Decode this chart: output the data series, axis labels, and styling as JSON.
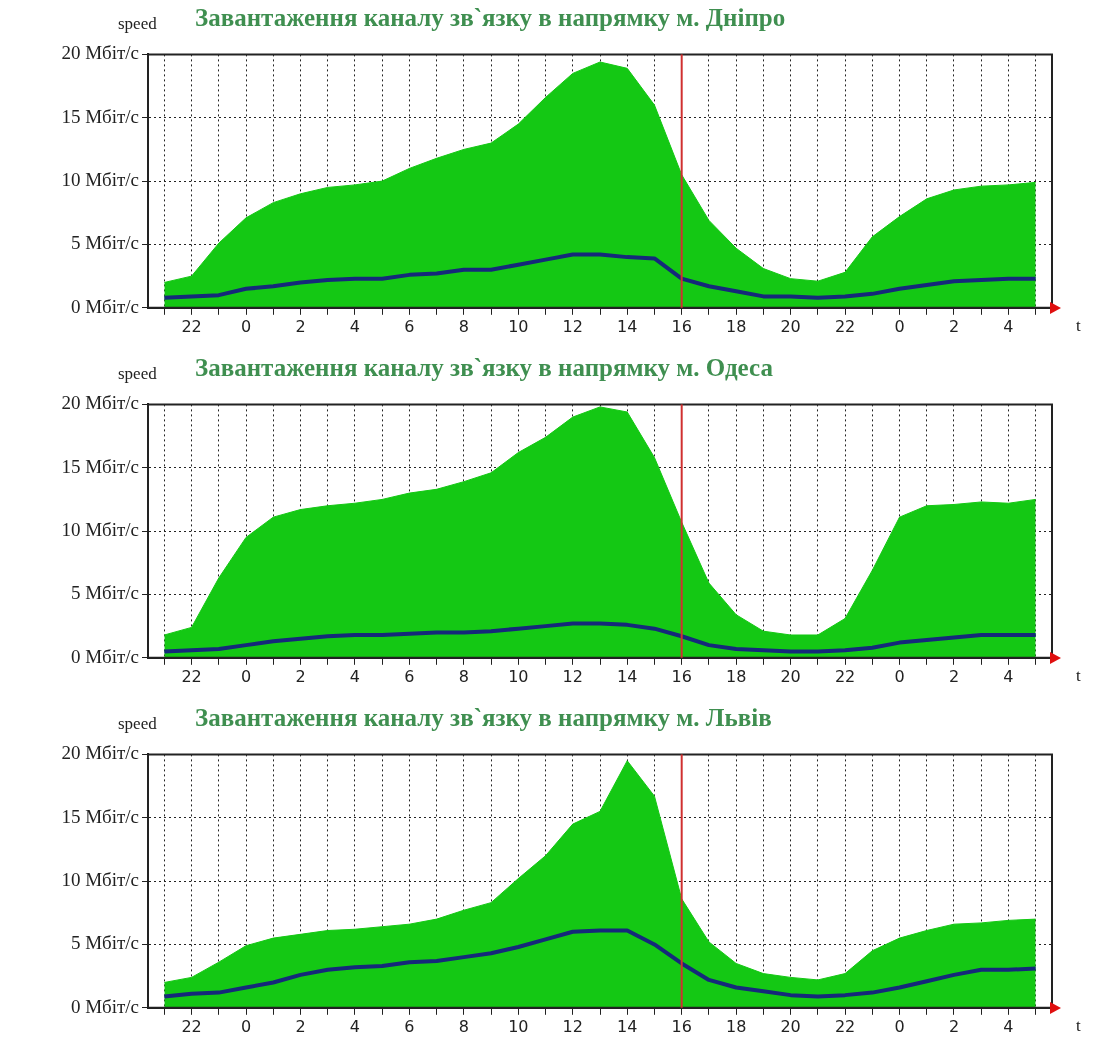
{
  "chart_data": [
    {
      "type": "area",
      "title": "Завантаження каналу зв`язку в напрямку м. Дніпро",
      "xlabel": "t",
      "ylabel": "speed",
      "categories": [
        null,
        "22",
        null,
        "0",
        null,
        "2",
        null,
        "4",
        null,
        "6",
        null,
        "8",
        null,
        "10",
        null,
        "12",
        null,
        "14",
        null,
        "16",
        null,
        "18",
        null,
        "20",
        null,
        "22",
        null,
        "0",
        null,
        "2",
        null,
        "4",
        null
      ],
      "series": [
        {
          "type": "area",
          "color": "#14c814",
          "values": [
            2.0,
            2.5,
            5.1,
            7.1,
            8.3,
            9.0,
            9.5,
            9.7,
            10.0,
            11.0,
            11.8,
            12.5,
            13.0,
            14.5,
            16.6,
            18.5,
            19.4,
            18.9,
            16.0,
            10.5,
            6.9,
            4.7,
            3.1,
            2.3,
            2.1,
            2.8,
            5.6,
            7.2,
            8.6,
            9.3,
            9.6,
            9.7,
            9.9
          ]
        },
        {
          "type": "line",
          "color": "#15297a",
          "values": [
            0.8,
            0.9,
            1.0,
            1.5,
            1.7,
            2.0,
            2.2,
            2.3,
            2.3,
            2.6,
            2.7,
            3.0,
            3.0,
            3.4,
            3.8,
            4.2,
            4.2,
            4.0,
            3.9,
            2.3,
            1.7,
            1.3,
            0.9,
            0.9,
            0.8,
            0.9,
            1.1,
            1.5,
            1.8,
            2.1,
            2.2,
            2.3,
            2.3
          ]
        }
      ],
      "ylim": [
        0,
        20
      ],
      "yticks": [
        {
          "value": 0,
          "label": "0 Мбіт/с"
        },
        {
          "value": 5,
          "label": "5 Мбіт/с"
        },
        {
          "value": 10,
          "label": "10 Мбіт/с"
        },
        {
          "value": 15,
          "label": "15 Мбіт/с"
        },
        {
          "value": 20,
          "label": "20 Мбіт/с"
        }
      ],
      "grid": true,
      "ref_lines": [
        {
          "axis": "x",
          "value": "16",
          "color": "#d03030"
        }
      ]
    },
    {
      "type": "area",
      "title": "Завантаження каналу зв`язку в напрямку м. Одеса",
      "xlabel": "t",
      "ylabel": "speed",
      "categories": [
        null,
        "22",
        null,
        "0",
        null,
        "2",
        null,
        "4",
        null,
        "6",
        null,
        "8",
        null,
        "10",
        null,
        "12",
        null,
        "14",
        null,
        "16",
        null,
        "18",
        null,
        "20",
        null,
        "22",
        null,
        "0",
        null,
        "2",
        null,
        "4",
        null
      ],
      "series": [
        {
          "type": "area",
          "color": "#14c814",
          "values": [
            1.8,
            2.4,
            6.3,
            9.5,
            11.1,
            11.7,
            12.0,
            12.2,
            12.5,
            13.0,
            13.3,
            13.9,
            14.6,
            16.2,
            17.4,
            19.0,
            19.8,
            19.4,
            15.8,
            10.7,
            5.9,
            3.4,
            2.1,
            1.8,
            1.8,
            3.1,
            6.9,
            11.1,
            12.0,
            12.1,
            12.3,
            12.2,
            12.5
          ]
        },
        {
          "type": "line",
          "color": "#15297a",
          "values": [
            0.5,
            0.6,
            0.7,
            1.0,
            1.3,
            1.5,
            1.7,
            1.8,
            1.8,
            1.9,
            2.0,
            2.0,
            2.1,
            2.3,
            2.5,
            2.7,
            2.7,
            2.6,
            2.3,
            1.7,
            1.0,
            0.7,
            0.6,
            0.5,
            0.5,
            0.6,
            0.8,
            1.2,
            1.4,
            1.6,
            1.8,
            1.8,
            1.8
          ]
        }
      ],
      "ylim": [
        0,
        20
      ],
      "yticks": [
        {
          "value": 0,
          "label": "0 Мбіт/с"
        },
        {
          "value": 5,
          "label": "5 Мбіт/с"
        },
        {
          "value": 10,
          "label": "10 Мбіт/с"
        },
        {
          "value": 15,
          "label": "15 Мбіт/с"
        },
        {
          "value": 20,
          "label": "20 Мбіт/с"
        }
      ],
      "grid": true,
      "ref_lines": [
        {
          "axis": "x",
          "value": "16",
          "color": "#d03030"
        }
      ]
    },
    {
      "type": "area",
      "title": "Завантаження каналу зв`язку в напрямку м. Львів",
      "xlabel": "t",
      "ylabel": "speed",
      "categories": [
        null,
        "22",
        null,
        "0",
        null,
        "2",
        null,
        "4",
        null,
        "6",
        null,
        "8",
        null,
        "10",
        null,
        "12",
        null,
        "14",
        null,
        "16",
        null,
        "18",
        null,
        "20",
        null,
        "22",
        null,
        "0",
        null,
        "2",
        null,
        "4",
        null
      ],
      "series": [
        {
          "type": "area",
          "color": "#14c814",
          "values": [
            2.0,
            2.4,
            3.6,
            4.9,
            5.5,
            5.8,
            6.1,
            6.2,
            6.4,
            6.6,
            7.0,
            7.7,
            8.3,
            10.2,
            12.0,
            14.5,
            15.5,
            19.5,
            16.7,
            8.6,
            5.2,
            3.5,
            2.7,
            2.4,
            2.2,
            2.7,
            4.5,
            5.5,
            6.1,
            6.6,
            6.7,
            6.9,
            7.0
          ]
        },
        {
          "type": "line",
          "color": "#15297a",
          "values": [
            0.9,
            1.1,
            1.2,
            1.6,
            2.0,
            2.6,
            3.0,
            3.2,
            3.3,
            3.6,
            3.7,
            4.0,
            4.3,
            4.8,
            5.4,
            6.0,
            6.1,
            6.1,
            5.0,
            3.5,
            2.2,
            1.6,
            1.3,
            1.0,
            0.9,
            1.0,
            1.2,
            1.6,
            2.1,
            2.6,
            3.0,
            3.0,
            3.1
          ]
        }
      ],
      "ylim": [
        0,
        20
      ],
      "yticks": [
        {
          "value": 0,
          "label": "0 Мбіт/с"
        },
        {
          "value": 5,
          "label": "5 Мбіт/с"
        },
        {
          "value": 10,
          "label": "10 Мбіт/с"
        },
        {
          "value": 15,
          "label": "15 Мбіт/с"
        },
        {
          "value": 20,
          "label": "20 Мбіт/с"
        }
      ],
      "grid": true,
      "ref_lines": [
        {
          "axis": "x",
          "value": "16",
          "color": "#d03030"
        }
      ]
    }
  ]
}
